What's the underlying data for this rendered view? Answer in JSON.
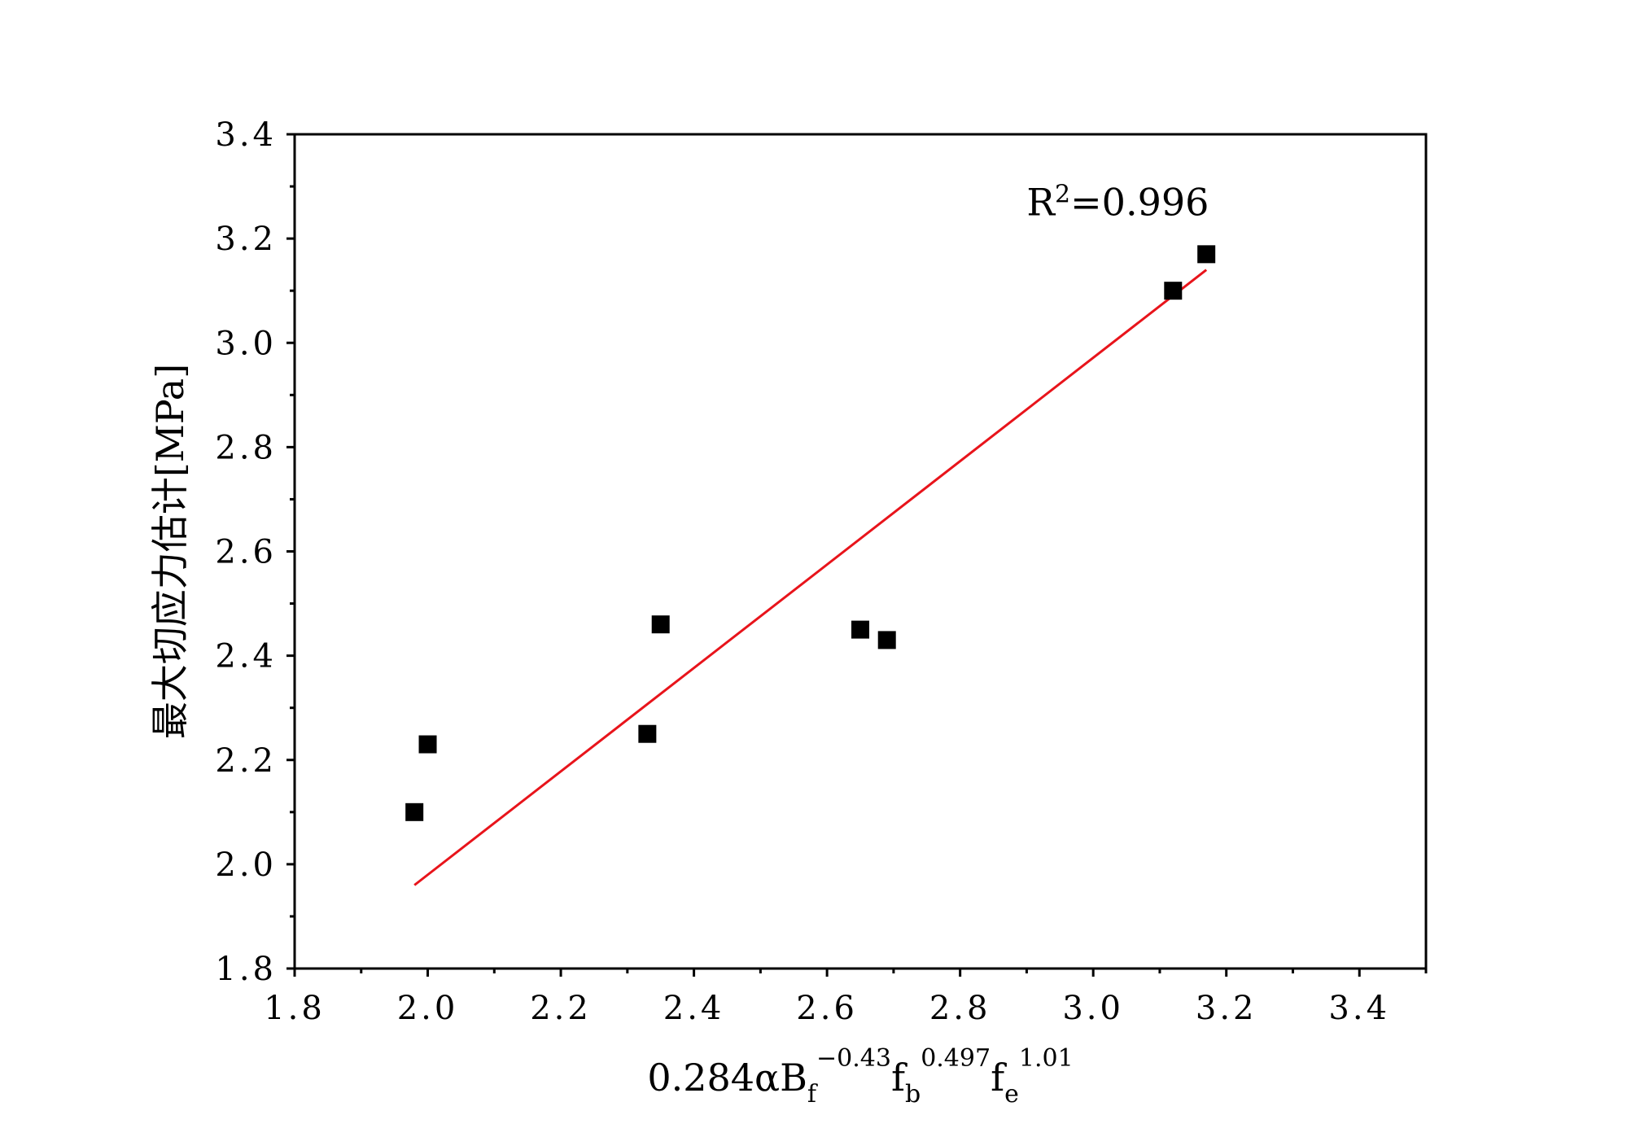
{
  "chart_data": {
    "type": "scatter",
    "title": "",
    "xlabel": {
      "prefix": "0.284αB",
      "parts": [
        {
          "sub": "f",
          "sup": "−0.43"
        },
        {
          "base": "f",
          "sub": "b",
          "sup": "0.497"
        },
        {
          "base": "f",
          "sub": "e",
          "sup": "1.01"
        }
      ]
    },
    "ylabel": "最大切应力估计[MPa]",
    "xlim": [
      1.8,
      3.5
    ],
    "ylim": [
      1.8,
      3.4
    ],
    "xticks": [
      "1.8",
      "2.0",
      "2.2",
      "2.4",
      "2.6",
      "2.8",
      "3.0",
      "3.2",
      "3.4"
    ],
    "yticks": [
      "1.8",
      "2.0",
      "2.2",
      "2.4",
      "2.6",
      "2.8",
      "3.0",
      "3.2",
      "3.4"
    ],
    "grid": false,
    "series": [
      {
        "type": "scatter",
        "color": "#000000",
        "marker": "square",
        "points": [
          {
            "x": 1.98,
            "y": 2.1
          },
          {
            "x": 2.0,
            "y": 2.23
          },
          {
            "x": 2.33,
            "y": 2.25
          },
          {
            "x": 2.35,
            "y": 2.46
          },
          {
            "x": 2.65,
            "y": 2.45
          },
          {
            "x": 2.69,
            "y": 2.43
          },
          {
            "x": 3.12,
            "y": 3.1
          },
          {
            "x": 3.17,
            "y": 3.17
          }
        ]
      },
      {
        "type": "line",
        "color": "#e8141b",
        "points": [
          {
            "x": 1.98,
            "y": 1.96
          },
          {
            "x": 3.17,
            "y": 3.14
          }
        ]
      }
    ],
    "annotation": {
      "prefix": "R",
      "sup": "2",
      "suffix": "=0.996",
      "x": 2.9,
      "y": 3.245
    }
  }
}
